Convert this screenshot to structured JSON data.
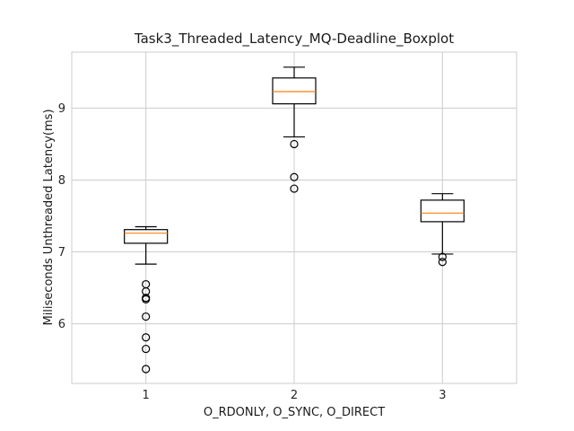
{
  "chart_data": {
    "type": "boxplot",
    "title": "Task3_Threaded_Latency_MQ-Deadline_Boxplot",
    "xlabel": "O_RDONLY, O_SYNC, O_DIRECT",
    "ylabel": "Miliseconds Unthreaded Latency(ms)",
    "ylim": [
      5.17,
      9.78
    ],
    "yticks": [
      6,
      7,
      8,
      9
    ],
    "grid": true,
    "colors": {
      "median": "#ff7f0e",
      "grid": "#cccccc",
      "box": "#000000"
    },
    "categories": [
      "1",
      "2",
      "3"
    ],
    "boxes": [
      {
        "label": "1",
        "whisker_low": 6.83,
        "q1": 7.12,
        "median": 7.26,
        "q3": 7.31,
        "whisker_high": 7.35,
        "fliers": [
          6.55,
          6.45,
          6.36,
          6.34,
          6.1,
          5.81,
          5.65,
          5.37
        ]
      },
      {
        "label": "2",
        "whisker_low": 8.6,
        "q1": 9.06,
        "median": 9.23,
        "q3": 9.42,
        "whisker_high": 9.57,
        "fliers": [
          8.5,
          8.04,
          7.88
        ]
      },
      {
        "label": "3",
        "whisker_low": 6.97,
        "q1": 7.42,
        "median": 7.54,
        "q3": 7.72,
        "whisker_high": 7.81,
        "fliers": [
          6.93,
          6.86
        ]
      }
    ]
  }
}
